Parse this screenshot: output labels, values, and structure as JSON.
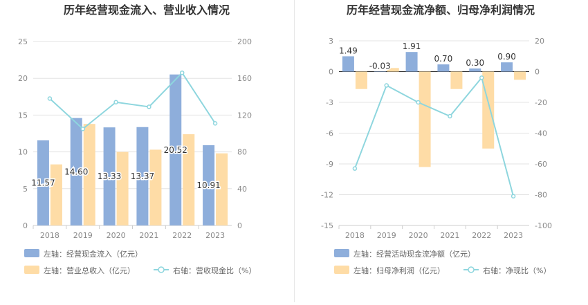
{
  "colors": {
    "bar_blue": "#8eaedb",
    "bar_orange": "#fedca6",
    "line_cyan": "#8ed6de",
    "axis_text": "#888888",
    "grid": "#e3e3e3",
    "title": "#333333",
    "label": "#333333"
  },
  "chart_data": [
    {
      "type": "bar",
      "title": "历年经营现金流入、营业收入情况",
      "categories": [
        "2018",
        "2019",
        "2020",
        "2021",
        "2022",
        "2023"
      ],
      "left_axis": {
        "ylim": [
          0,
          25
        ],
        "ticks": [
          "0",
          "5",
          "10",
          "15",
          "20",
          "25"
        ]
      },
      "right_axis": {
        "ylim": [
          0,
          200
        ],
        "ticks": [
          "0",
          "40",
          "80",
          "120",
          "160",
          "200"
        ]
      },
      "series": [
        {
          "name": "左轴：经营现金流入（亿元）",
          "kind": "bar",
          "axis": "left",
          "color": "#8eaedb",
          "values": [
            11.57,
            14.6,
            13.33,
            13.37,
            20.52,
            10.91
          ],
          "labels": [
            "11.57",
            "14.60",
            "13.33",
            "13.37",
            "20.52",
            "10.91"
          ]
        },
        {
          "name": "左轴：营业总收入（亿元）",
          "kind": "bar",
          "axis": "left",
          "color": "#fedca6",
          "values": [
            8.3,
            13.8,
            10.0,
            10.3,
            12.4,
            9.8
          ]
        },
        {
          "name": "右轴：营收现金比（%）",
          "kind": "line",
          "axis": "right",
          "color": "#8ed6de",
          "values": [
            138,
            105,
            134,
            129,
            166,
            111
          ]
        }
      ],
      "grid": true,
      "legend_position": "bottom-left"
    },
    {
      "type": "bar",
      "title": "历年经营现金流净额、归母净利润情况",
      "categories": [
        "2018",
        "2019",
        "2020",
        "2021",
        "2022",
        "2023"
      ],
      "left_axis": {
        "ylim": [
          -15,
          3
        ],
        "ticks": [
          "-15",
          "-12",
          "-9",
          "-6",
          "-3",
          "0",
          "3"
        ]
      },
      "right_axis": {
        "ylim": [
          -100,
          20
        ],
        "ticks": [
          "-100",
          "-80",
          "-60",
          "-40",
          "-20",
          "0",
          "20"
        ]
      },
      "series": [
        {
          "name": "左轴：经营活动现金流净额（亿元）",
          "kind": "bar",
          "axis": "left",
          "color": "#8eaedb",
          "values": [
            1.49,
            -0.03,
            1.91,
            0.7,
            0.3,
            0.9
          ],
          "labels": [
            "1.49",
            "-0.03",
            "1.91",
            "0.70",
            "0.30",
            "0.90"
          ]
        },
        {
          "name": "左轴：归母净利润（亿元）",
          "kind": "bar",
          "axis": "left",
          "color": "#fedca6",
          "values": [
            -1.7,
            0.35,
            -9.3,
            -1.7,
            -7.5,
            -0.8
          ]
        },
        {
          "name": "右轴：净现比（%）",
          "kind": "line",
          "axis": "right",
          "color": "#8ed6de",
          "values": [
            -63,
            -9,
            -20,
            -29,
            -4,
            -81
          ]
        }
      ],
      "grid": true,
      "legend_position": "bottom-left"
    }
  ]
}
